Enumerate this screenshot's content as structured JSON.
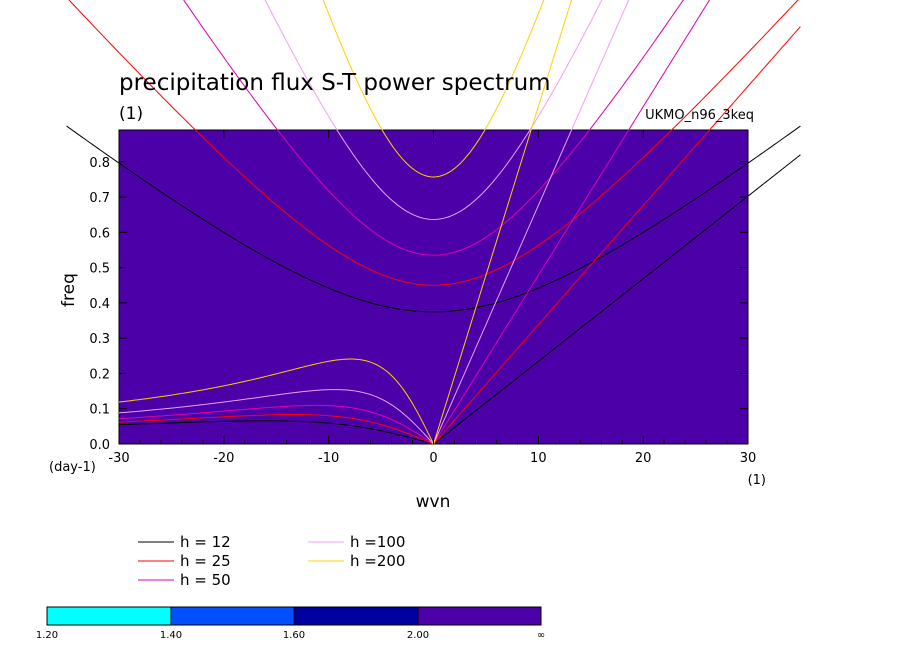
{
  "chart_data": {
    "type": "line",
    "title": "precipitation flux S-T power spectrum",
    "subtitle": "(1)",
    "dataset_label": "UKMO_n96_3keq",
    "xlabel": "wvn",
    "ylabel": "freq",
    "x_units": "(1)",
    "y_units": "(day-1)",
    "xlim": [
      -30,
      30
    ],
    "ylim": [
      0,
      0.89
    ],
    "x_ticks": [
      -30,
      -20,
      -10,
      0,
      10,
      20,
      30
    ],
    "x_tick_labels": [
      "-30",
      "-20",
      "-10",
      "0",
      "10",
      "20",
      "30"
    ],
    "y_ticks": [
      0,
      0.1,
      0.2,
      0.3,
      0.4,
      0.5,
      0.6,
      0.7,
      0.8
    ],
    "y_tick_labels": [
      "0.0",
      "0.1",
      "0.2",
      "0.3",
      "0.4",
      "0.5",
      "0.6",
      "0.7",
      "0.8"
    ],
    "background_fill": "#4b00a8",
    "series": [
      {
        "name": "h = 12",
        "h": 12,
        "color": "#000000"
      },
      {
        "name": "h = 25",
        "h": 25,
        "color": "#ff0000"
      },
      {
        "name": "h = 50",
        "h": 50,
        "color": "#e000b0"
      },
      {
        "name": "h =100",
        "h": 100,
        "color": "#f0a0f0"
      },
      {
        "name": "h =200",
        "h": 200,
        "color": "#ffd000"
      }
    ],
    "colorbar": {
      "labels": [
        "1.20",
        "1.40",
        "1.60",
        "2.00",
        "∞"
      ],
      "colors": [
        "#00ffff",
        "#0050ff",
        "#0000a0",
        "#4b00a8"
      ]
    }
  }
}
